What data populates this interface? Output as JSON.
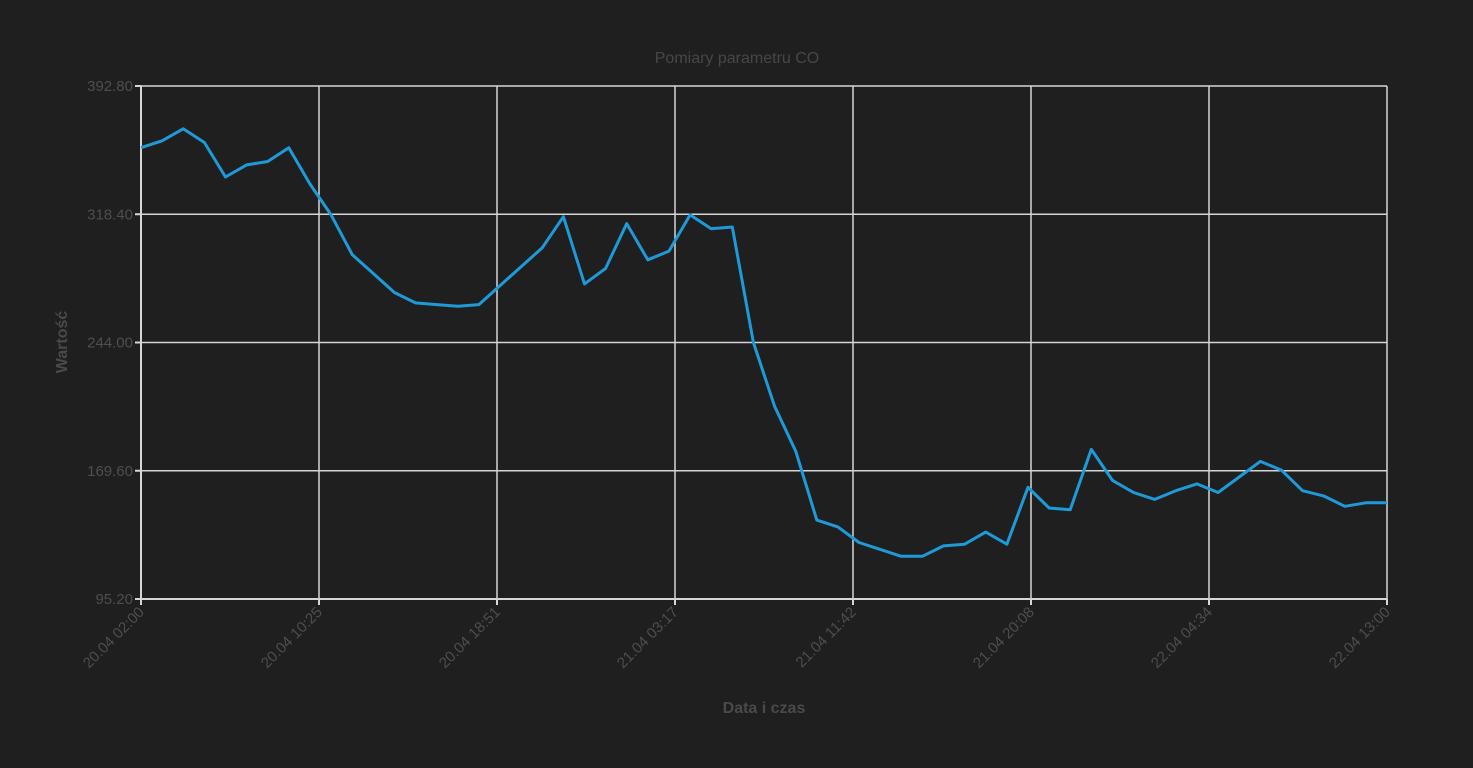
{
  "chart_data": {
    "type": "line",
    "title": "Pomiary parametru CO",
    "xlabel": "Data i czas",
    "ylabel": "Wartość",
    "ylim": [
      95.2,
      392.8
    ],
    "yticks": [
      "392.80",
      "318.40",
      "244.00",
      "169.60",
      "95.20"
    ],
    "ytick_values": [
      392.8,
      318.4,
      244.0,
      169.6,
      95.2
    ],
    "xticks": [
      "20.04 02:00",
      "20.04 10:25",
      "20.04 18:51",
      "21.04 03:17",
      "21.04 11:42",
      "21.04 20:08",
      "22.04 04:34",
      "22.04 13:00"
    ],
    "grid": true,
    "legend": "none",
    "line_color": "#1f9ad9",
    "series": [
      {
        "values": [
          357,
          361,
          368,
          360,
          340,
          347,
          349,
          357,
          336,
          318,
          295,
          284,
          273,
          267,
          266,
          265,
          266,
          277,
          288,
          299,
          317,
          278,
          287,
          313,
          292,
          297,
          318,
          310,
          311,
          244,
          207,
          181,
          141,
          137,
          128,
          124,
          120,
          120,
          126,
          127,
          134,
          127,
          160,
          148,
          147,
          182,
          164,
          157,
          153,
          158,
          162,
          157,
          166,
          175,
          170,
          158,
          155,
          149,
          151,
          151
        ]
      }
    ]
  }
}
